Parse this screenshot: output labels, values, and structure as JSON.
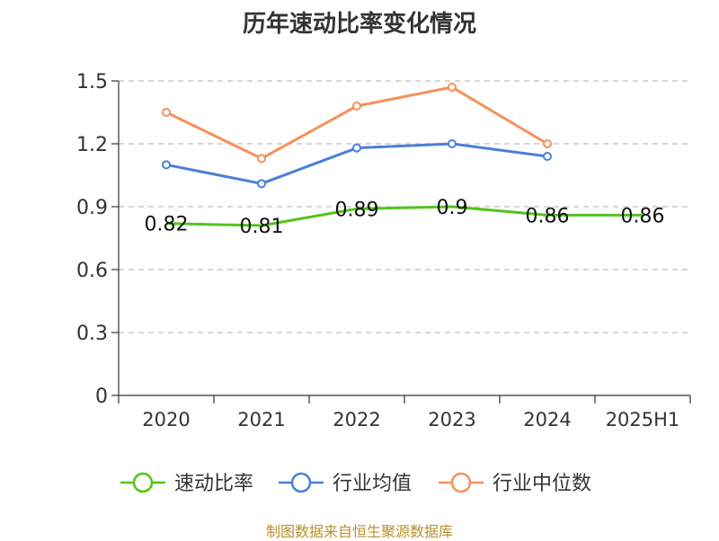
{
  "chart_data": {
    "type": "line",
    "title": "历年速动比率变化情况",
    "categories": [
      "2020",
      "2021",
      "2022",
      "2023",
      "2024",
      "2025H1"
    ],
    "ylim": [
      0,
      1.5
    ],
    "yticks": [
      "0",
      "0.3",
      "0.6",
      "0.9",
      "1.2",
      "1.5"
    ],
    "ytick_values": [
      0,
      0.3,
      0.6,
      0.9,
      1.2,
      1.5
    ],
    "grid": true,
    "legend_position": "bottom",
    "series": [
      {
        "name": "速动比率",
        "color": "#52c41a",
        "values": [
          0.82,
          0.81,
          0.89,
          0.9,
          0.86,
          0.86
        ],
        "labels": [
          "0.82",
          "0.81",
          "0.89",
          "0.9",
          "0.86",
          "0.86"
        ]
      },
      {
        "name": "行业均值",
        "color": "#4a7fd9",
        "values": [
          1.1,
          1.01,
          1.18,
          1.2,
          1.14,
          null
        ]
      },
      {
        "name": "行业中位数",
        "color": "#f7905a",
        "values": [
          1.35,
          1.13,
          1.38,
          1.47,
          1.2,
          null
        ]
      }
    ]
  },
  "source_note": "制图数据来自恒生聚源数据库",
  "source_color": "#b8912f"
}
